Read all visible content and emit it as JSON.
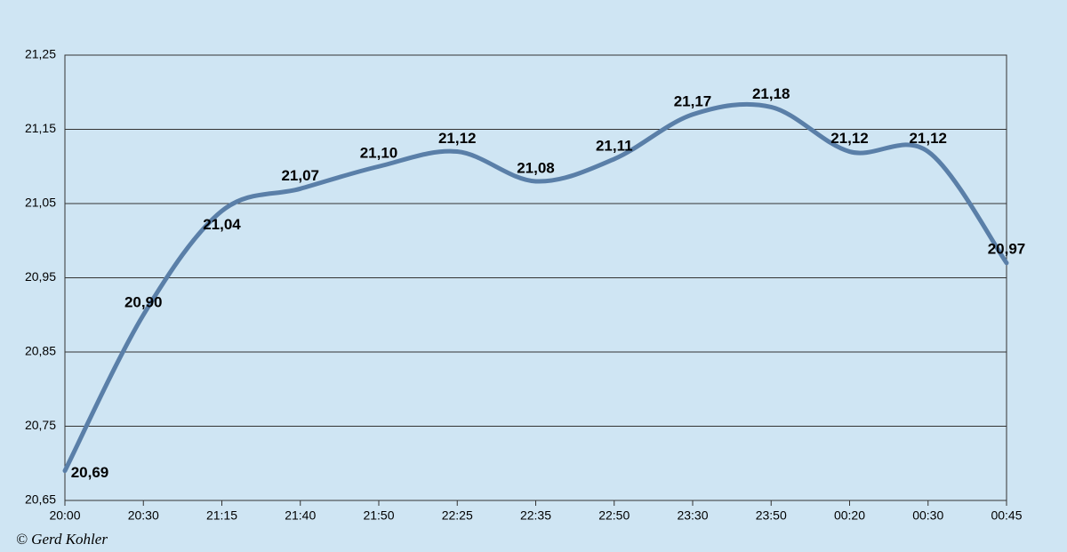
{
  "chart_data": {
    "type": "line",
    "categories": [
      "20:00",
      "20:30",
      "21:15",
      "21:40",
      "21:50",
      "22:25",
      "22:35",
      "22:50",
      "23:30",
      "23:50",
      "00:20",
      "00:30",
      "00:45"
    ],
    "series": [
      {
        "color": "#5a7fa8",
        "values": [
          20.69,
          20.9,
          21.04,
          21.07,
          21.1,
          21.12,
          21.08,
          21.11,
          21.17,
          21.18,
          21.12,
          21.12,
          20.97
        ],
        "value_labels": [
          "20,69",
          "20,90",
          "21,04",
          "21,07",
          "21,10",
          "21,12",
          "21,08",
          "21,11",
          "21,17",
          "21,18",
          "21,12",
          "21,12",
          "20,97"
        ]
      }
    ],
    "ylim": [
      20.65,
      21.25
    ],
    "yticks": [
      {
        "value": 20.65,
        "label": "20,65"
      },
      {
        "value": 20.75,
        "label": "20,75"
      },
      {
        "value": 20.85,
        "label": "20,85"
      },
      {
        "value": 20.95,
        "label": "20,95"
      },
      {
        "value": 21.05,
        "label": "21,05"
      },
      {
        "value": 21.15,
        "label": "21,15"
      },
      {
        "value": 21.25,
        "label": "21,25"
      }
    ],
    "grid": true,
    "copyright": "© Gerd Kohler"
  }
}
